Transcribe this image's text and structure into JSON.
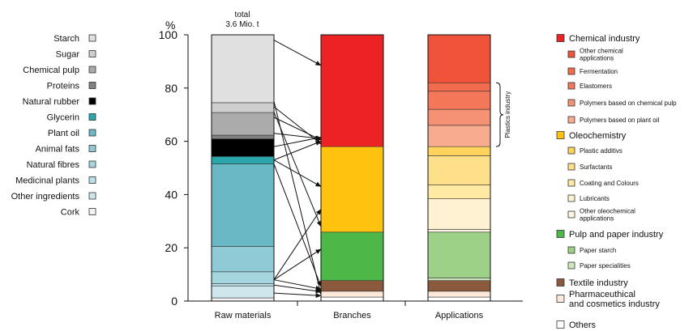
{
  "chart_data": {
    "type": "bar",
    "stacked": true,
    "ylabel": "%",
    "ylim": [
      0,
      100
    ],
    "yticks": [
      0,
      20,
      40,
      60,
      80,
      100
    ],
    "categories": [
      "Raw materials",
      "Branches",
      "Applications"
    ],
    "total_label": [
      "total",
      "3.6 Mio. t"
    ],
    "bars": [
      {
        "category": "Raw materials",
        "segments": [
          {
            "name": "Cork",
            "value": 1.2,
            "color": "#f2f2f2"
          },
          {
            "name": "Other ingredients",
            "value": 4.5,
            "color": "#cde7ed"
          },
          {
            "name": "Medicinal plants",
            "value": 0.8,
            "color": "#bbe0e8"
          },
          {
            "name": "Natural fibres",
            "value": 4.5,
            "color": "#a5d6e0"
          },
          {
            "name": "Animal fats",
            "value": 9.5,
            "color": "#8fcad6"
          },
          {
            "name": "Plant oil",
            "value": 31.0,
            "color": "#6ab7c5"
          },
          {
            "name": "Glycerin",
            "value": 2.8,
            "color": "#2aa5ab"
          },
          {
            "name": "Natural rubber",
            "value": 6.6,
            "color": "#000000"
          },
          {
            "name": "Proteins",
            "value": 1.4,
            "color": "#808080"
          },
          {
            "name": "Chemical pulp",
            "value": 8.5,
            "color": "#ababab"
          },
          {
            "name": "Sugar",
            "value": 3.7,
            "color": "#cfcfcf"
          },
          {
            "name": "Starch",
            "value": 25.5,
            "color": "#e0e0e0"
          }
        ]
      },
      {
        "category": "Branches",
        "segments": [
          {
            "name": "Others",
            "value": 1.5,
            "color": "#ffffff"
          },
          {
            "name": "Pharmaceuthical and cosmetics industry",
            "value": 2.2,
            "color": "#fde9d9"
          },
          {
            "name": "Textile industry",
            "value": 4.0,
            "color": "#8b5a3c"
          },
          {
            "name": "Pulp and paper industry",
            "value": 18.2,
            "color": "#4db848"
          },
          {
            "name": "Oleochemistry",
            "value": 32.1,
            "color": "#ffc20e"
          },
          {
            "name": "Chemical industry",
            "value": 42.0,
            "color": "#ed2224"
          }
        ]
      },
      {
        "category": "Applications",
        "segments": [
          {
            "name": "Others",
            "value": 1.5,
            "color": "#ffffff"
          },
          {
            "name": "Pharmaceuthical and cosmetics industry",
            "value": 2.2,
            "color": "#fde9d9"
          },
          {
            "name": "Textile industry",
            "value": 4.0,
            "color": "#8b5a3c"
          },
          {
            "name": "Paper specialities",
            "value": 1.0,
            "color": "#cde8bf"
          },
          {
            "name": "Paper starch",
            "value": 17.2,
            "color": "#9dd187"
          },
          {
            "name": "Other oleochemical applications",
            "value": 1.0,
            "color": "#fff7e3"
          },
          {
            "name": "Lubricants",
            "value": 11.5,
            "color": "#fff2d2"
          },
          {
            "name": "Coating and Colours",
            "value": 5.2,
            "color": "#ffe9a3"
          },
          {
            "name": "Surfactants",
            "value": 11.0,
            "color": "#ffe08a"
          },
          {
            "name": "Plastic additivs",
            "value": 3.4,
            "color": "#ffd35c"
          },
          {
            "name": "Polymers based on plant oil",
            "value": 8.0,
            "color": "#f9ab90"
          },
          {
            "name": "Polymers based on chemical pulp",
            "value": 6.0,
            "color": "#f69274"
          },
          {
            "name": "Elastomers",
            "value": 6.8,
            "color": "#f4775a"
          },
          {
            "name": "Fermentation",
            "value": 3.2,
            "color": "#f26b4d"
          },
          {
            "name": "Other chemical applications",
            "value": 18.0,
            "color": "#f0533a"
          }
        ]
      }
    ],
    "raw_legend": [
      {
        "label": "Starch",
        "color": "#e0e0e0"
      },
      {
        "label": "Sugar",
        "color": "#cfcfcf"
      },
      {
        "label": "Chemical pulp",
        "color": "#ababab"
      },
      {
        "label": "Proteins",
        "color": "#808080"
      },
      {
        "label": "Natural rubber",
        "color": "#000000"
      },
      {
        "label": "Glycerin",
        "color": "#2aa5ab"
      },
      {
        "label": "Plant oil",
        "color": "#6ab7c5"
      },
      {
        "label": "Animal fats",
        "color": "#8fcad6"
      },
      {
        "label": "Natural fibres",
        "color": "#a5d6e0"
      },
      {
        "label": "Medicinal plants",
        "color": "#bbe0e8"
      },
      {
        "label": "Other ingredients",
        "color": "#cde7ed"
      },
      {
        "label": "Cork",
        "color": "#f2f2f2"
      }
    ],
    "app_legend": [
      {
        "label": [
          "Chemical industry"
        ],
        "color": "#ed2224",
        "main": true
      },
      {
        "label": [
          "Other chemical",
          "applications"
        ],
        "color": "#f0533a",
        "main": false
      },
      {
        "label": [
          "Fermentation"
        ],
        "color": "#f26b4d",
        "main": false
      },
      {
        "label": [
          "Elastomers"
        ],
        "color": "#f4775a",
        "main": false
      },
      {
        "label": [
          "Polymers based on chemical pulp"
        ],
        "color": "#f69274",
        "main": false
      },
      {
        "label": [
          "Polymers based on plant oil"
        ],
        "color": "#f9ab90",
        "main": false
      },
      {
        "label": [
          "Oleochemistry"
        ],
        "color": "#ffc20e",
        "main": true
      },
      {
        "label": [
          "Plastic additivs"
        ],
        "color": "#ffd35c",
        "main": false
      },
      {
        "label": [
          "Surfactants"
        ],
        "color": "#ffe08a",
        "main": false
      },
      {
        "label": [
          "Coating and Colours"
        ],
        "color": "#ffe9a3",
        "main": false
      },
      {
        "label": [
          "Lubricants"
        ],
        "color": "#fff2d2",
        "main": false
      },
      {
        "label": [
          "Other oleochemical",
          "applications"
        ],
        "color": "#fff7e3",
        "main": false
      },
      {
        "label": [
          "Pulp and paper industry"
        ],
        "color": "#4db848",
        "main": true
      },
      {
        "label": [
          "Paper starch"
        ],
        "color": "#9dd187",
        "main": false
      },
      {
        "label": [
          "Paper specialities"
        ],
        "color": "#cde8bf",
        "main": false
      },
      {
        "label": [
          "Textile industry"
        ],
        "color": "#8b5a3c",
        "main": true
      },
      {
        "label": [
          "Pharmaceuthical",
          "and cosmetics industry"
        ],
        "color": "#fde9d9",
        "main": true
      },
      {
        "label": [
          "Others"
        ],
        "color": "#ffffff",
        "main": true
      }
    ],
    "bracket_label": "Plastics industry",
    "bracket_range": [
      58.0,
      82.0
    ],
    "flows": [
      [
        98.0,
        88.5
      ],
      [
        73.0,
        59.0
      ],
      [
        69.0,
        60.5
      ],
      [
        71.0,
        28.0
      ],
      [
        75.0,
        2.5
      ],
      [
        63.0,
        61.0
      ],
      [
        58.0,
        61.5
      ],
      [
        53.0,
        60.0
      ],
      [
        53.0,
        43.0
      ],
      [
        51.5,
        5.5
      ],
      [
        8.0,
        34.5
      ],
      [
        8.0,
        19.5
      ],
      [
        8.0,
        4.5
      ],
      [
        6.0,
        3.5
      ],
      [
        3.0,
        2.0
      ]
    ]
  }
}
